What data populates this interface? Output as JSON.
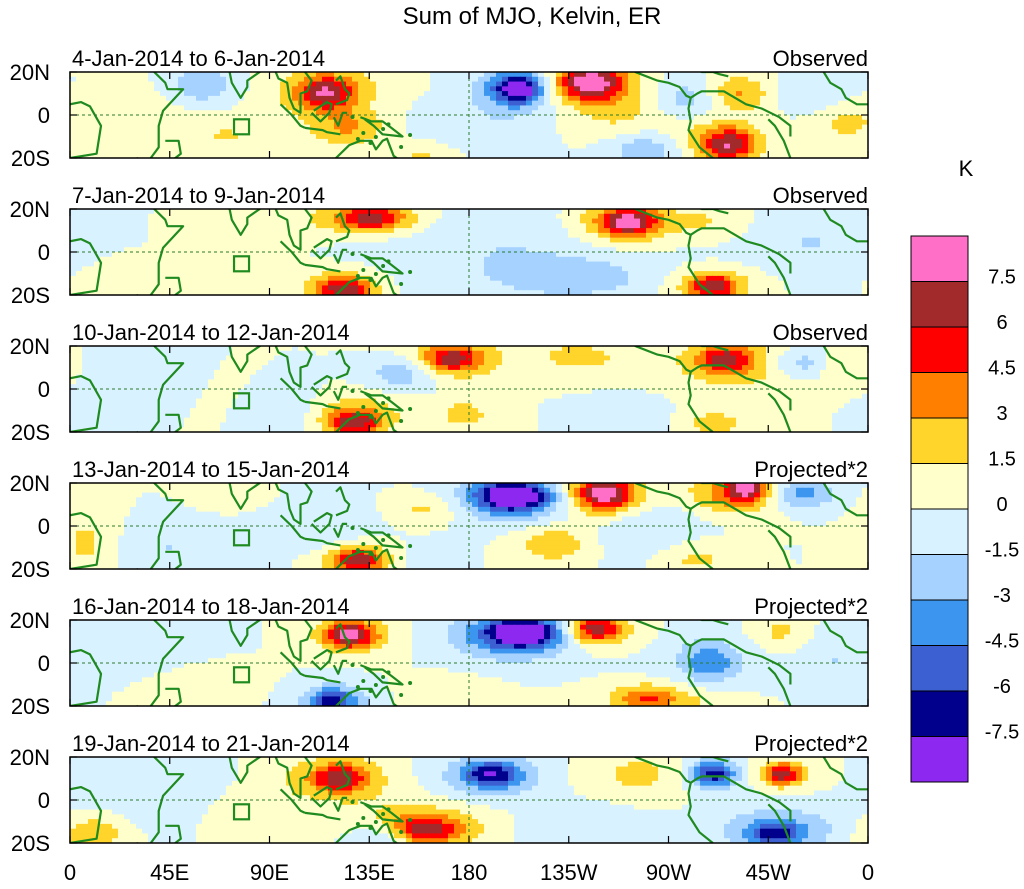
{
  "chart_data": {
    "type": "heatmap",
    "title": "Sum of MJO, Kelvin, ER",
    "xlabel": "",
    "ylabel": "",
    "x_ticks": [
      "0",
      "45E",
      "90E",
      "135E",
      "180",
      "135W",
      "90W",
      "45W",
      "0"
    ],
    "x_range": [
      0,
      360
    ],
    "y_ticks": [
      "20N",
      "0",
      "20S"
    ],
    "y_range": [
      -20,
      20
    ],
    "colorbar": {
      "unit": "K",
      "levels": [
        "7.5",
        "6",
        "4.5",
        "3",
        "1.5",
        "0",
        "-1.5",
        "-3",
        "-4.5",
        "-6",
        "-7.5"
      ],
      "colors": [
        "#ff6ec7",
        "#a32a2a",
        "#ff0000",
        "#ff7f00",
        "#ffd42b",
        "#ffffcc",
        "#d9f2ff",
        "#a6d2ff",
        "#3c96f0",
        "#3c5fd2",
        "#00008c",
        "#8c28f0"
      ]
    },
    "panels": [
      {
        "date_range": "4-Jan-2014 to 6-Jan-2014",
        "label": "Observed",
        "blobs": [
          [
            118,
            12,
            16,
            8,
            3
          ],
          [
            115,
            10,
            8,
            5,
            5
          ],
          [
            160,
            -18,
            12,
            5,
            2
          ],
          [
            126,
            -6,
            12,
            6,
            3
          ],
          [
            200,
            12,
            12,
            7,
            -5
          ],
          [
            203,
            12,
            6,
            4,
            -6
          ],
          [
            237,
            15,
            15,
            8,
            4
          ],
          [
            234,
            15,
            9,
            5,
            6
          ],
          [
            282,
            8,
            12,
            7,
            -3
          ],
          [
            300,
            10,
            12,
            6,
            4
          ],
          [
            292,
            -12,
            14,
            8,
            3
          ],
          [
            298,
            -14,
            8,
            5,
            5
          ],
          [
            260,
            -16,
            12,
            6,
            -3
          ],
          [
            60,
            14,
            10,
            6,
            -3
          ],
          [
            70,
            -10,
            12,
            6,
            1.5
          ],
          [
            250,
            -2,
            16,
            8,
            1.5
          ],
          [
            350,
            -4,
            10,
            6,
            2
          ],
          [
            180,
            -8,
            20,
            8,
            -1.5
          ],
          [
            30,
            0,
            20,
            10,
            0.7
          ],
          [
            330,
            10,
            14,
            6,
            -1.5
          ],
          [
            100,
            0,
            15,
            12,
            0.5
          ]
        ]
      },
      {
        "date_range": "7-Jan-2014 to 9-Jan-2014",
        "label": "Observed",
        "blobs": [
          [
            135,
            16,
            20,
            6,
            3
          ],
          [
            136,
            16,
            10,
            4,
            4.5
          ],
          [
            122,
            -16,
            14,
            6,
            3
          ],
          [
            124,
            -18,
            8,
            4,
            5
          ],
          [
            250,
            14,
            18,
            8,
            4
          ],
          [
            252,
            14,
            8,
            4,
            6
          ],
          [
            290,
            -16,
            14,
            6,
            3
          ],
          [
            290,
            -16,
            7,
            4,
            4.5
          ],
          [
            290,
            14,
            12,
            6,
            1.5
          ],
          [
            70,
            0,
            12,
            12,
            1.5
          ],
          [
            30,
            -14,
            14,
            6,
            1.5
          ],
          [
            200,
            0,
            50,
            20,
            -1.5
          ],
          [
            335,
            5,
            20,
            10,
            -1.5
          ],
          [
            230,
            -12,
            22,
            6,
            -1.5
          ],
          [
            100,
            10,
            15,
            8,
            0.5
          ]
        ]
      },
      {
        "date_range": "10-Jan-2014 to 12-Jan-2014",
        "label": "Observed",
        "blobs": [
          [
            172,
            14,
            18,
            7,
            3
          ],
          [
            172,
            14,
            8,
            4,
            4.5
          ],
          [
            128,
            -12,
            16,
            7,
            3
          ],
          [
            128,
            -16,
            8,
            4,
            5
          ],
          [
            300,
            12,
            20,
            8,
            3
          ],
          [
            295,
            14,
            8,
            4,
            4.5
          ],
          [
            330,
            12,
            10,
            5,
            -3
          ],
          [
            150,
            8,
            12,
            6,
            -3
          ],
          [
            255,
            -14,
            14,
            6,
            -1.5
          ],
          [
            230,
            15,
            16,
            6,
            2
          ],
          [
            290,
            -16,
            14,
            6,
            2
          ],
          [
            178,
            -12,
            10,
            6,
            2
          ],
          [
            35,
            5,
            18,
            10,
            -1.5
          ],
          [
            348,
            10,
            10,
            6,
            1.5
          ],
          [
            100,
            -10,
            14,
            8,
            -1.5
          ],
          [
            60,
            0,
            15,
            10,
            0.5
          ]
        ]
      },
      {
        "date_range": "13-Jan-2014 to 15-Jan-2014",
        "label": "Projected*2",
        "blobs": [
          [
            200,
            13,
            18,
            8,
            -5
          ],
          [
            200,
            14,
            10,
            4,
            -7
          ],
          [
            240,
            15,
            15,
            8,
            4
          ],
          [
            241,
            15,
            8,
            5,
            6
          ],
          [
            300,
            15,
            15,
            7,
            4
          ],
          [
            305,
            18,
            6,
            4,
            6
          ],
          [
            330,
            15,
            10,
            5,
            -4
          ],
          [
            218,
            -8,
            12,
            6,
            3
          ],
          [
            130,
            -16,
            14,
            6,
            3
          ],
          [
            130,
            -16,
            7,
            4,
            4.5
          ],
          [
            160,
            8,
            12,
            5,
            2
          ],
          [
            8,
            -8,
            10,
            10,
            2
          ],
          [
            282,
            -15,
            12,
            6,
            2
          ],
          [
            110,
            0,
            20,
            10,
            -1.5
          ],
          [
            45,
            -10,
            20,
            8,
            -1.5
          ],
          [
            260,
            0,
            20,
            10,
            -1.5
          ],
          [
            160,
            -16,
            10,
            5,
            -1.5
          ],
          [
            80,
            12,
            14,
            6,
            0.7
          ]
        ]
      },
      {
        "date_range": "16-Jan-2014 to 18-Jan-2014",
        "label": "Projected*2",
        "blobs": [
          [
            200,
            13,
            20,
            8,
            -5
          ],
          [
            205,
            14,
            10,
            4,
            -8
          ],
          [
            128,
            13,
            14,
            6,
            3
          ],
          [
            126,
            13,
            7,
            4,
            6
          ],
          [
            237,
            15,
            14,
            6,
            3
          ],
          [
            237,
            16,
            7,
            4,
            5
          ],
          [
            270,
            -18,
            20,
            6,
            2
          ],
          [
            260,
            -16,
            10,
            4,
            3
          ],
          [
            120,
            -18,
            12,
            6,
            -3
          ],
          [
            118,
            -18,
            6,
            4,
            -4.5
          ],
          [
            290,
            2,
            18,
            10,
            -1.5
          ],
          [
            288,
            0,
            8,
            6,
            -3
          ],
          [
            320,
            14,
            10,
            6,
            2
          ],
          [
            345,
            2,
            12,
            10,
            -1.5
          ],
          [
            40,
            8,
            18,
            8,
            -1.5
          ],
          [
            170,
            -14,
            15,
            6,
            1
          ],
          [
            60,
            -8,
            15,
            8,
            1
          ]
        ]
      },
      {
        "date_range": "19-Jan-2014 to 21-Jan-2014",
        "label": "Projected*2",
        "blobs": [
          [
            190,
            11,
            18,
            8,
            -3
          ],
          [
            190,
            12,
            8,
            4,
            -5
          ],
          [
            120,
            10,
            18,
            8,
            3
          ],
          [
            122,
            10,
            8,
            4,
            4.5
          ],
          [
            160,
            -12,
            22,
            8,
            3
          ],
          [
            160,
            -14,
            10,
            4,
            4.5
          ],
          [
            260,
            12,
            20,
            8,
            2
          ],
          [
            290,
            12,
            12,
            6,
            -3
          ],
          [
            290,
            12,
            6,
            4,
            -4.5
          ],
          [
            320,
            12,
            10,
            5,
            3
          ],
          [
            322,
            12,
            5,
            3,
            4.5
          ],
          [
            230,
            -14,
            20,
            8,
            -1.5
          ],
          [
            320,
            -14,
            20,
            8,
            -3
          ],
          [
            318,
            -16,
            8,
            4,
            -4.5
          ],
          [
            140,
            -18,
            10,
            5,
            -3
          ],
          [
            10,
            -16,
            10,
            6,
            3
          ],
          [
            40,
            5,
            20,
            10,
            -1.5
          ],
          [
            80,
            -5,
            15,
            8,
            1
          ]
        ]
      }
    ]
  },
  "figure_title": "Sum of MJO, Kelvin, ER"
}
